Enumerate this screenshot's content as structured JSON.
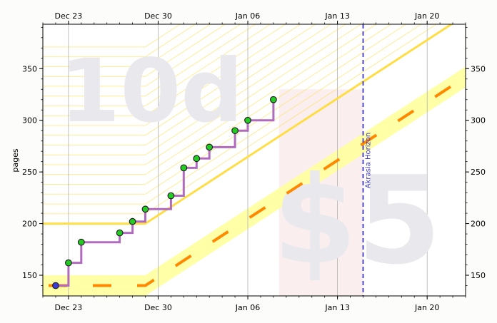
{
  "watermarks": {
    "top_left": "10d",
    "bottom_right": "$5"
  },
  "akrasia_label": "Akrasia Horizon",
  "colors": {
    "road_line": "#ffdd44",
    "road_band": "#ffff99",
    "red_shade": "#fbeeee",
    "data_path": "#b06bbf",
    "point_fill": "#22cc22",
    "first_point_fill": "#3b3bd9",
    "dashed_orange": "#ff8800",
    "akrasia_line": "#3b36c9",
    "watermark": "#e9e9ed"
  },
  "chart_data": {
    "type": "line",
    "ylabel": "pages",
    "xlabel": "",
    "x_date_range": [
      "2025-12-21",
      "2026-01-23"
    ],
    "ylim": [
      130,
      393
    ],
    "x_ticks": [
      {
        "date": "2025-12-23",
        "label": "Dec 23"
      },
      {
        "date": "2025-12-30",
        "label": "Dec 30"
      },
      {
        "date": "2026-01-06",
        "label": "Jan 06"
      },
      {
        "date": "2026-01-13",
        "label": "Jan 13"
      },
      {
        "date": "2026-01-20",
        "label": "Jan 20"
      }
    ],
    "y_ticks": [
      150,
      200,
      250,
      300,
      350
    ],
    "grid": "x",
    "akrasia_horizon": "2026-01-15",
    "datapoints": [
      {
        "date": "2025-12-22",
        "value": 140
      },
      {
        "date": "2025-12-23",
        "value": 162
      },
      {
        "date": "2025-12-24",
        "value": 182
      },
      {
        "date": "2025-12-27",
        "value": 191
      },
      {
        "date": "2025-12-28",
        "value": 202
      },
      {
        "date": "2025-12-29",
        "value": 214
      },
      {
        "date": "2025-12-31",
        "value": 227
      },
      {
        "date": "2026-01-01",
        "value": 254
      },
      {
        "date": "2026-01-02",
        "value": 263
      },
      {
        "date": "2026-01-03",
        "value": 274
      },
      {
        "date": "2026-01-05",
        "value": 290
      },
      {
        "date": "2026-01-06",
        "value": 300
      },
      {
        "date": "2026-01-08",
        "value": 320
      }
    ],
    "bright_red_line": [
      {
        "date": "2025-12-21",
        "value": 200
      },
      {
        "date": "2025-12-29",
        "value": 200
      },
      {
        "date": "2026-01-10",
        "value": 297
      },
      {
        "date": "2026-01-24",
        "value": 410
      }
    ],
    "safe_band_lower_edge": [
      {
        "date": "2025-12-21",
        "value": 150
      },
      {
        "date": "2025-12-29",
        "value": 150
      },
      {
        "date": "2026-01-10",
        "value": 247
      },
      {
        "date": "2026-01-23",
        "value": 352
      }
    ],
    "safe_band_upper_edge": [
      {
        "date": "2025-12-21",
        "value": 130
      },
      {
        "date": "2025-12-29",
        "value": 130
      },
      {
        "date": "2026-01-10",
        "value": 227
      },
      {
        "date": "2026-01-23",
        "value": 332
      }
    ],
    "dashed_orange_line": [
      {
        "date": "2025-12-21",
        "value": 140
      },
      {
        "date": "2025-12-29",
        "value": 140
      },
      {
        "date": "2026-01-10",
        "value": 237
      },
      {
        "date": "2026-01-23",
        "value": 342
      }
    ]
  }
}
